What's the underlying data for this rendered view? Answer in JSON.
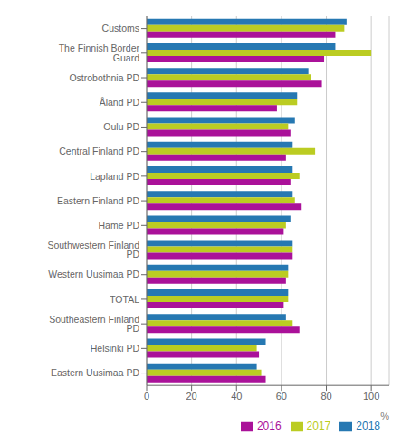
{
  "chart_data": {
    "type": "bar",
    "orientation": "horizontal",
    "categories": [
      "Eastern Uusimaa PD",
      "Helsinki PD",
      "Southeastern Finland PD",
      "TOTAL",
      "Western Uusimaa PD",
      "Southwestern Finland PD",
      "Häme PD",
      "Eastern Finland PD",
      "Lapland PD",
      "Central Finland PD",
      "Oulu PD",
      "Åland PD",
      "Ostrobothnia PD",
      "The Finnish Border Guard",
      "Customs"
    ],
    "series": [
      {
        "name": "2018",
        "color": "#2678B2",
        "values": [
          49,
          53,
          62,
          63,
          63,
          65,
          64,
          65,
          65,
          65,
          66,
          67,
          72,
          84,
          89
        ]
      },
      {
        "name": "2017",
        "color": "#BBCC22",
        "values": [
          51,
          49,
          65,
          63,
          63,
          65,
          62,
          66,
          68,
          75,
          63,
          67,
          73,
          100,
          88
        ]
      },
      {
        "name": "2016",
        "color": "#AA1199",
        "values": [
          53,
          50,
          68,
          61,
          62,
          65,
          61,
          69,
          64,
          62,
          64,
          58,
          78,
          79,
          84
        ]
      }
    ],
    "xlabel": "%",
    "xlim": [
      0,
      108
    ],
    "xticks": [
      0,
      20,
      40,
      60,
      80,
      100
    ],
    "grid": true,
    "legend": "lower right"
  }
}
